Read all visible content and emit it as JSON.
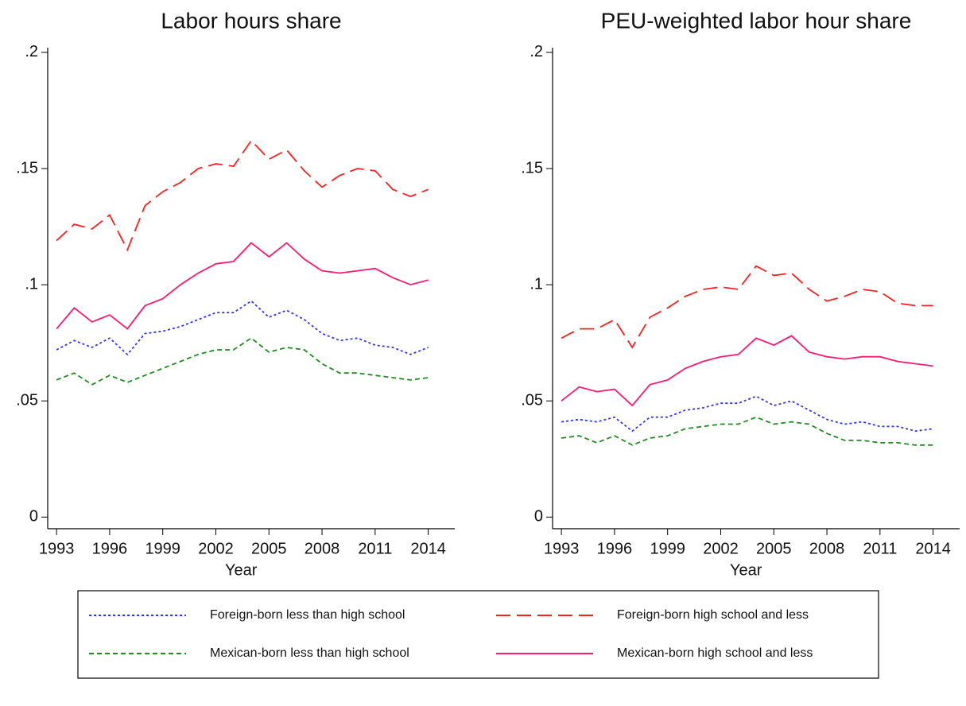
{
  "chart_data": [
    {
      "type": "line",
      "title": "Labor hours share",
      "x_label": "Year",
      "x": [
        1993,
        1994,
        1995,
        1996,
        1997,
        1998,
        1999,
        2000,
        2001,
        2002,
        2003,
        2004,
        2005,
        2006,
        2007,
        2008,
        2009,
        2010,
        2011,
        2012,
        2013,
        2014
      ],
      "xlim": [
        1992.5,
        2015.5
      ],
      "xticks": [
        1993,
        1996,
        1999,
        2002,
        2005,
        2008,
        2011,
        2014
      ],
      "ylim": [
        -0.005,
        0.202
      ],
      "yticks": [
        0,
        {
          "value": 0.05,
          "label": ".05"
        },
        {
          "value": 0.1,
          "label": ".1"
        },
        {
          "value": 0.15,
          "label": ".15"
        },
        {
          "value": 0.2,
          "label": ".2"
        }
      ],
      "grid": false,
      "series": [
        {
          "name": "Foreign-born less than high school",
          "color": "#3333ff",
          "dash": "dotted",
          "values": [
            0.072,
            0.076,
            0.073,
            0.077,
            0.07,
            0.079,
            0.08,
            0.082,
            0.085,
            0.088,
            0.088,
            0.093,
            0.086,
            0.089,
            0.085,
            0.079,
            0.076,
            0.077,
            0.074,
            0.073,
            0.07,
            0.073
          ]
        },
        {
          "name": "Foreign-born high school and less",
          "color": "#ff2020",
          "dash": "longdash",
          "values": [
            0.119,
            0.126,
            0.124,
            0.13,
            0.115,
            0.134,
            0.14,
            0.144,
            0.15,
            0.152,
            0.151,
            0.162,
            0.154,
            0.158,
            0.149,
            0.142,
            0.147,
            0.15,
            0.149,
            0.141,
            0.138,
            0.141
          ]
        },
        {
          "name": "Mexican-born less than high school",
          "color": "#228b22",
          "dash": "dashed",
          "values": [
            0.059,
            0.062,
            0.057,
            0.061,
            0.058,
            0.061,
            0.064,
            0.067,
            0.07,
            0.072,
            0.072,
            0.077,
            0.071,
            0.073,
            0.072,
            0.066,
            0.062,
            0.062,
            0.061,
            0.06,
            0.059,
            0.06
          ]
        },
        {
          "name": "Mexican-born high school and less",
          "color": "#ff1a75",
          "dash": "solid",
          "values": [
            0.081,
            0.09,
            0.084,
            0.087,
            0.081,
            0.091,
            0.094,
            0.1,
            0.105,
            0.109,
            0.11,
            0.118,
            0.112,
            0.118,
            0.111,
            0.106,
            0.105,
            0.106,
            0.107,
            0.103,
            0.1,
            0.102
          ]
        }
      ]
    },
    {
      "type": "line",
      "title": "PEU-weighted labor hour share",
      "x_label": "Year",
      "x": [
        1993,
        1994,
        1995,
        1996,
        1997,
        1998,
        1999,
        2000,
        2001,
        2002,
        2003,
        2004,
        2005,
        2006,
        2007,
        2008,
        2009,
        2010,
        2011,
        2012,
        2013,
        2014
      ],
      "xlim": [
        1992.5,
        2015.5
      ],
      "xticks": [
        1993,
        1996,
        1999,
        2002,
        2005,
        2008,
        2011,
        2014
      ],
      "ylim": [
        -0.005,
        0.202
      ],
      "yticks": [
        0,
        {
          "value": 0.05,
          "label": ".05"
        },
        {
          "value": 0.1,
          "label": ".1"
        },
        {
          "value": 0.15,
          "label": ".15"
        },
        {
          "value": 0.2,
          "label": ".2"
        }
      ],
      "grid": false,
      "series": [
        {
          "color": "#3333ff",
          "dash": "dotted",
          "values": [
            0.041,
            0.042,
            0.041,
            0.043,
            0.037,
            0.043,
            0.043,
            0.046,
            0.047,
            0.049,
            0.049,
            0.052,
            0.048,
            0.05,
            0.046,
            0.042,
            0.04,
            0.041,
            0.039,
            0.039,
            0.037,
            0.038
          ]
        },
        {
          "color": "#ff2020",
          "dash": "longdash",
          "values": [
            0.077,
            0.081,
            0.081,
            0.085,
            0.073,
            0.086,
            0.09,
            0.095,
            0.098,
            0.099,
            0.098,
            0.108,
            0.104,
            0.105,
            0.098,
            0.093,
            0.095,
            0.098,
            0.097,
            0.092,
            0.091,
            0.091
          ]
        },
        {
          "color": "#228b22",
          "dash": "dashed",
          "values": [
            0.034,
            0.035,
            0.032,
            0.035,
            0.031,
            0.034,
            0.035,
            0.038,
            0.039,
            0.04,
            0.04,
            0.043,
            0.04,
            0.041,
            0.04,
            0.036,
            0.033,
            0.033,
            0.032,
            0.032,
            0.031,
            0.031
          ]
        },
        {
          "color": "#ff1a75",
          "dash": "solid",
          "values": [
            0.05,
            0.056,
            0.054,
            0.055,
            0.048,
            0.057,
            0.059,
            0.064,
            0.067,
            0.069,
            0.07,
            0.077,
            0.074,
            0.078,
            0.071,
            0.069,
            0.068,
            0.069,
            0.069,
            0.067,
            0.066,
            0.065
          ]
        }
      ]
    }
  ]
}
